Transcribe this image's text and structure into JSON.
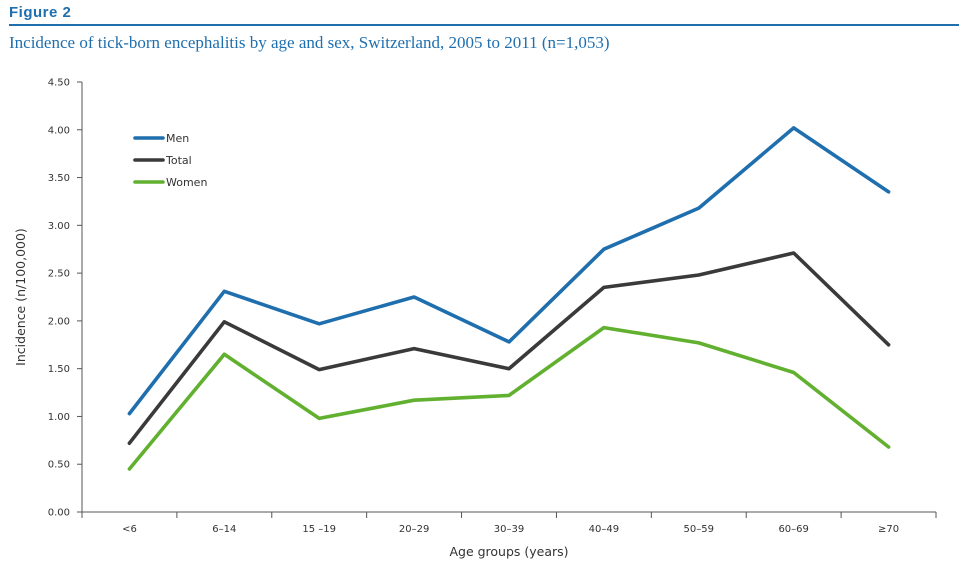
{
  "figure": {
    "label": "Figure 2",
    "title": "Incidence of tick-born encephalitis by age and sex, Switzerland, 2005 to 2011 (n=1,053)"
  },
  "chart_data": {
    "type": "line",
    "categories": [
      "<6",
      "6–14",
      "15 –19",
      "20–29",
      "30–39",
      "40–49",
      "50–59",
      "60–69",
      "≥70"
    ],
    "xlabel": "Age groups (years)",
    "ylabel": "Incidence (n/100,000)",
    "ylim": [
      0,
      4.5
    ],
    "yticks": [
      "0.00",
      "0.50",
      "1.00",
      "1.50",
      "2.00",
      "2.50",
      "3.00",
      "3.50",
      "4.00",
      "4.50"
    ],
    "grid": false,
    "legend": "top-left",
    "series": [
      {
        "name": "Men",
        "color": "#1f6fae",
        "values": [
          1.03,
          2.31,
          1.97,
          2.25,
          1.78,
          2.75,
          3.18,
          4.02,
          3.35
        ]
      },
      {
        "name": "Total",
        "color": "#3a3a3a",
        "values": [
          0.72,
          1.99,
          1.49,
          1.71,
          1.5,
          2.35,
          2.48,
          2.71,
          1.75
        ]
      },
      {
        "name": "Women",
        "color": "#62b030",
        "values": [
          0.45,
          1.65,
          0.98,
          1.17,
          1.22,
          1.93,
          1.77,
          1.46,
          0.68
        ]
      }
    ]
  }
}
